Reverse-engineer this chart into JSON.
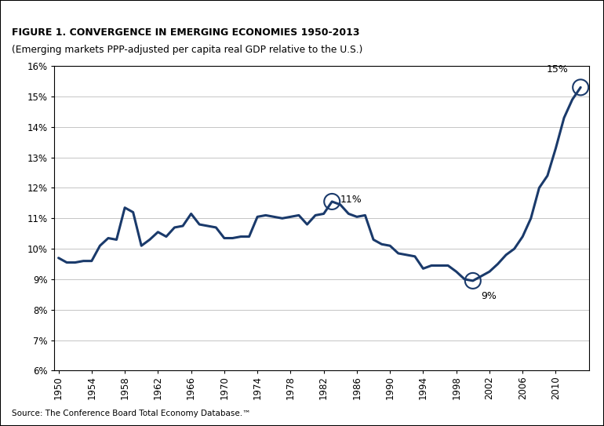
{
  "title_line1": "FIGURE 1. CONVERGENCE IN EMERGING ECONOMIES 1950-2013",
  "title_line2": "(Emerging markets PPP-adjusted per capita real GDP relative to the U.S.)",
  "source": "Source: The Conference Board Total Economy Database.™",
  "background_color": "#ffffff",
  "line_color": "#1a3a6b",
  "ylim": [
    6,
    16
  ],
  "yticks": [
    6,
    7,
    8,
    9,
    10,
    11,
    12,
    13,
    14,
    15,
    16
  ],
  "xticks": [
    1950,
    1954,
    1958,
    1962,
    1966,
    1970,
    1974,
    1978,
    1982,
    1986,
    1990,
    1994,
    1998,
    2002,
    2006,
    2010
  ],
  "xlim": [
    1949.5,
    2014
  ],
  "years": [
    1950,
    1951,
    1952,
    1953,
    1954,
    1955,
    1956,
    1957,
    1958,
    1959,
    1960,
    1961,
    1962,
    1963,
    1964,
    1965,
    1966,
    1967,
    1968,
    1969,
    1970,
    1971,
    1972,
    1973,
    1974,
    1975,
    1976,
    1977,
    1978,
    1979,
    1980,
    1981,
    1982,
    1983,
    1984,
    1985,
    1986,
    1987,
    1988,
    1989,
    1990,
    1991,
    1992,
    1993,
    1994,
    1995,
    1996,
    1997,
    1998,
    1999,
    2000,
    2001,
    2002,
    2003,
    2004,
    2005,
    2006,
    2007,
    2008,
    2009,
    2010,
    2011,
    2012,
    2013
  ],
  "values": [
    9.7,
    9.55,
    9.55,
    9.6,
    9.6,
    10.1,
    10.35,
    10.3,
    11.35,
    11.2,
    10.1,
    10.3,
    10.55,
    10.4,
    10.7,
    10.75,
    11.15,
    10.8,
    10.75,
    10.7,
    10.35,
    10.35,
    10.4,
    10.4,
    11.05,
    11.1,
    11.05,
    11.0,
    11.05,
    11.1,
    10.8,
    11.1,
    11.15,
    11.55,
    11.45,
    11.15,
    11.05,
    11.1,
    10.3,
    10.15,
    10.1,
    9.85,
    9.8,
    9.75,
    9.35,
    9.45,
    9.45,
    9.45,
    9.25,
    9.0,
    8.95,
    9.1,
    9.25,
    9.5,
    9.8,
    10.0,
    10.4,
    11.0,
    12.0,
    12.4,
    13.3,
    14.3,
    14.9,
    15.3
  ],
  "ann_11_x": 1983,
  "ann_11_y": 11.55,
  "ann_9_x": 2000,
  "ann_9_y": 8.95,
  "ann_15_x": 2013,
  "ann_15_y": 15.3
}
